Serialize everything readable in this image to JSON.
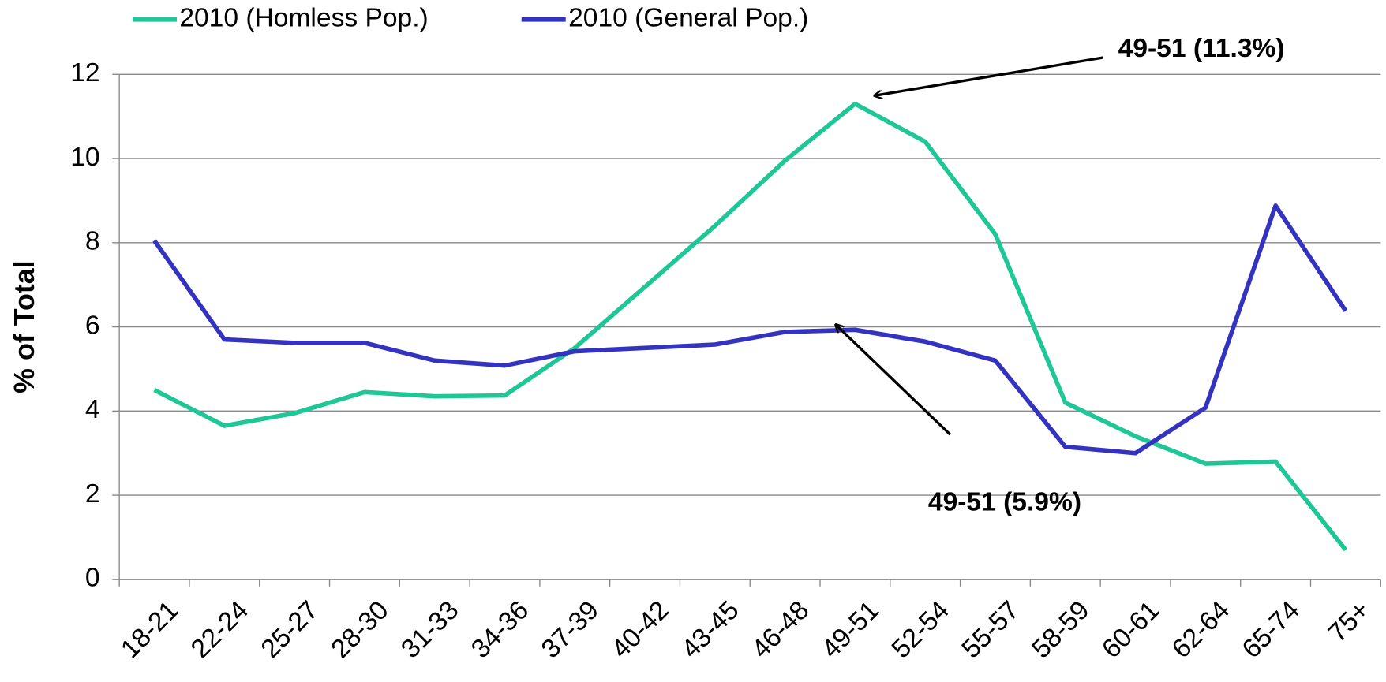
{
  "chart_data": {
    "type": "line",
    "y_label": "% of Total",
    "categories": [
      "18-21",
      "22-24",
      "25-27",
      "28-30",
      "31-33",
      "34-36",
      "37-39",
      "40-42",
      "43-45",
      "46-48",
      "49-51",
      "52-54",
      "55-57",
      "58-59",
      "60-61",
      "62-64",
      "65-74",
      "75+"
    ],
    "series": [
      {
        "name": "2010 (Homless Pop.)",
        "color": "#1fc796",
        "values": [
          4.5,
          3.65,
          3.95,
          4.45,
          4.35,
          4.37,
          5.5,
          6.95,
          8.4,
          9.95,
          11.3,
          10.4,
          8.2,
          4.2,
          3.4,
          2.75,
          2.8,
          0.7
        ]
      },
      {
        "name": "2010 (General Pop.)",
        "color": "#3333c0",
        "values": [
          8.05,
          5.7,
          5.62,
          5.62,
          5.2,
          5.08,
          5.42,
          5.5,
          5.58,
          5.88,
          5.93,
          5.65,
          5.2,
          3.15,
          3.0,
          4.08,
          8.88,
          6.38
        ]
      }
    ],
    "ylim": [
      0,
      12
    ],
    "yticks": [
      0,
      2,
      4,
      6,
      8,
      10,
      12
    ],
    "grid": true,
    "legend": "top",
    "annotations": [
      {
        "text": "49-51 (11.3%)"
      },
      {
        "text": "49-51 (5.9%)"
      }
    ]
  }
}
